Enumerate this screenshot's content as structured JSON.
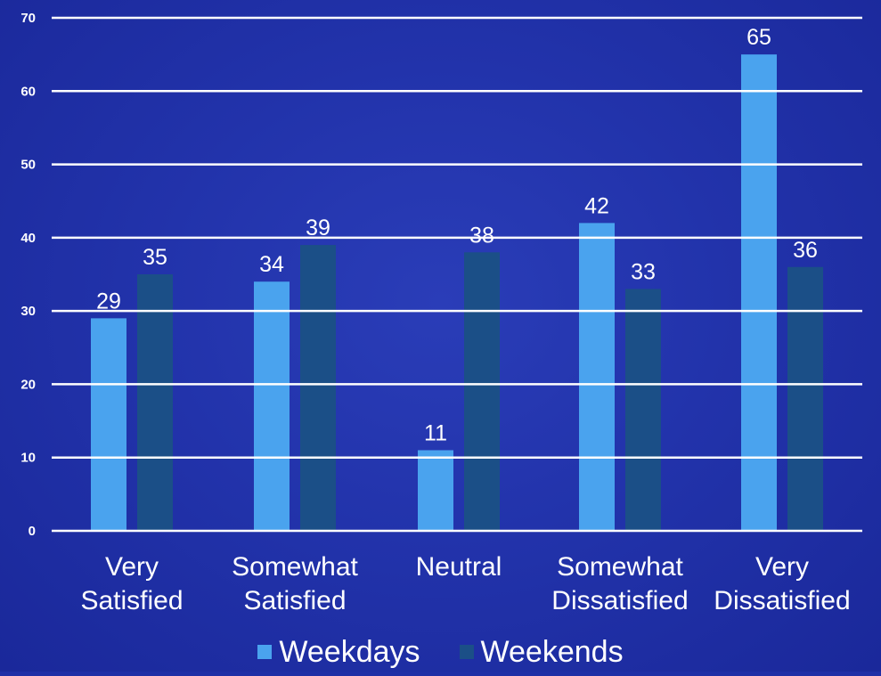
{
  "chart_data": {
    "type": "bar",
    "title": "",
    "xlabel": "",
    "ylabel": "",
    "ylim": [
      0,
      70
    ],
    "yticks": [
      0,
      10,
      20,
      30,
      40,
      50,
      60,
      70
    ],
    "grid": true,
    "legend_position": "bottom",
    "categories": [
      [
        "Very",
        "Satisfied"
      ],
      [
        "Somewhat",
        "Satisfied"
      ],
      [
        "Neutral"
      ],
      [
        "Somewhat",
        "Dissatisfied"
      ],
      [
        "Very",
        "Dissatisfied"
      ]
    ],
    "series": [
      {
        "name": "Weekdays",
        "values": [
          29,
          34,
          11,
          42,
          65
        ],
        "color": "#4aa3ee"
      },
      {
        "name": "Weekends",
        "values": [
          35,
          39,
          38,
          33,
          36
        ],
        "color": "#1b4f87"
      }
    ]
  },
  "colors": {
    "background": "#2233ab",
    "gridline": "#ffffff",
    "text": "#ffffff"
  }
}
